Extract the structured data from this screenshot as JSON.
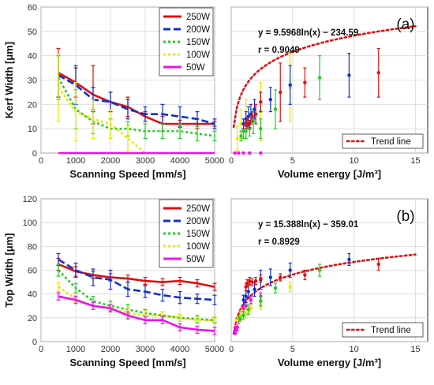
{
  "chart_data": [
    {
      "id": "a_left",
      "type": "line",
      "panel_label": "",
      "xlabel": "Scanning Speed [mm/s]",
      "ylabel": "Kerf Width [μm]",
      "xlim": [
        0,
        5000
      ],
      "ylim": [
        0,
        60
      ],
      "xticks": [
        0,
        1000,
        2000,
        3000,
        4000,
        5000
      ],
      "yticks": [
        0,
        10,
        20,
        30,
        40,
        50,
        60
      ],
      "grid": true,
      "legend_placement": "top-right",
      "series": [
        {
          "name": "250W",
          "color": "#e01010",
          "dash": "solid",
          "x": [
            500,
            1000,
            1500,
            2000,
            2500,
            3000,
            3500,
            4000,
            4500,
            5000
          ],
          "y": [
            33,
            29,
            24,
            21,
            19,
            15,
            12,
            12,
            12,
            12
          ],
          "err": [
            10,
            6,
            12,
            4,
            4,
            2,
            3,
            1.5,
            2,
            1
          ]
        },
        {
          "name": "200W",
          "color": "#1030cc",
          "dash": "dashed",
          "x": [
            500,
            1000,
            1500,
            2000,
            2500,
            3000,
            3500,
            4000,
            4500,
            5000
          ],
          "y": [
            32,
            28,
            22,
            21,
            18,
            16,
            16,
            15,
            14,
            12
          ],
          "err": [
            9,
            8,
            5,
            4,
            4,
            3,
            4,
            4,
            3,
            2
          ]
        },
        {
          "name": "150W",
          "color": "#22cc22",
          "dash": "dotted",
          "x": [
            500,
            1000,
            1500,
            2000,
            2500,
            3000,
            3500,
            4000,
            4500,
            5000
          ],
          "y": [
            31,
            18,
            13,
            10,
            10,
            9,
            9,
            9,
            8,
            7
          ],
          "err": [
            9,
            8,
            5,
            4,
            3,
            3,
            3,
            3,
            3,
            2
          ]
        },
        {
          "name": "100W",
          "color": "#e8e800",
          "dash": "dotted",
          "x": [
            500,
            1000,
            1500,
            2000,
            2500,
            3000
          ],
          "y": [
            27,
            17,
            14,
            12,
            6,
            0
          ],
          "err": [
            14,
            12,
            8,
            6,
            5,
            0
          ]
        },
        {
          "name": "50W",
          "color": "#ee10ee",
          "dash": "solid",
          "x": [
            500,
            1000,
            1500,
            2000,
            2500,
            3000,
            3500,
            4000,
            4500,
            5000
          ],
          "y": [
            0,
            0,
            0,
            0,
            0,
            0,
            0,
            0,
            0,
            0
          ],
          "err": [
            0,
            0,
            0,
            0,
            0,
            0,
            0,
            0,
            0,
            0
          ]
        }
      ]
    },
    {
      "id": "a_right",
      "type": "scatter",
      "panel_label": "(a)",
      "xlabel": "Volume energy [J/m³]",
      "ylabel": "",
      "xlim": [
        0,
        16
      ],
      "ylim": [
        0,
        60
      ],
      "xticks": [
        0,
        5,
        10,
        15
      ],
      "yticks": [
        0,
        10,
        20,
        30,
        40,
        50,
        60
      ],
      "grid": true,
      "annotation": [
        "y = 9.5968ln(x) − 234.59",
        "r = 0.9049"
      ],
      "legend": [
        "Trend line"
      ],
      "legend_placement": "bottom-right",
      "trend": {
        "a": 9.5968,
        "b": 26.16,
        "x_start": 0.2,
        "x_end": 15
      },
      "points": [
        {
          "x": 0.3,
          "y": 0,
          "err": 0,
          "color": "#ee10ee"
        },
        {
          "x": 0.6,
          "y": 0,
          "err": 0,
          "color": "#ee10ee"
        },
        {
          "x": 1.0,
          "y": 0,
          "err": 0,
          "color": "#ee10ee"
        },
        {
          "x": 1.5,
          "y": 0,
          "err": 0,
          "color": "#ee10ee"
        },
        {
          "x": 2.4,
          "y": 0,
          "err": 0,
          "color": "#ee10ee"
        },
        {
          "x": 0.5,
          "y": 6,
          "err": 5,
          "color": "#e8e800"
        },
        {
          "x": 0.8,
          "y": 12,
          "err": 6,
          "color": "#e8e800"
        },
        {
          "x": 1.2,
          "y": 14,
          "err": 8,
          "color": "#e8e800"
        },
        {
          "x": 2.4,
          "y": 17,
          "err": 12,
          "color": "#e8e800"
        },
        {
          "x": 4.8,
          "y": 27,
          "err": 14,
          "color": "#e8e800"
        },
        {
          "x": 0.8,
          "y": 7,
          "err": 2,
          "color": "#22cc22"
        },
        {
          "x": 1.0,
          "y": 9,
          "err": 3,
          "color": "#22cc22"
        },
        {
          "x": 1.2,
          "y": 9,
          "err": 3,
          "color": "#22cc22"
        },
        {
          "x": 1.5,
          "y": 10,
          "err": 3,
          "color": "#22cc22"
        },
        {
          "x": 1.8,
          "y": 13,
          "err": 5,
          "color": "#22cc22"
        },
        {
          "x": 2.4,
          "y": 10,
          "err": 4,
          "color": "#22cc22"
        },
        {
          "x": 3.6,
          "y": 18,
          "err": 8,
          "color": "#22cc22"
        },
        {
          "x": 7.2,
          "y": 31,
          "err": 9,
          "color": "#22cc22"
        },
        {
          "x": 1.0,
          "y": 12,
          "err": 2,
          "color": "#1030cc"
        },
        {
          "x": 1.2,
          "y": 14,
          "err": 3,
          "color": "#1030cc"
        },
        {
          "x": 1.4,
          "y": 15,
          "err": 4,
          "color": "#1030cc"
        },
        {
          "x": 1.6,
          "y": 16,
          "err": 4,
          "color": "#1030cc"
        },
        {
          "x": 1.9,
          "y": 18,
          "err": 4,
          "color": "#1030cc"
        },
        {
          "x": 2.4,
          "y": 21,
          "err": 4,
          "color": "#1030cc"
        },
        {
          "x": 3.2,
          "y": 22,
          "err": 5,
          "color": "#1030cc"
        },
        {
          "x": 4.8,
          "y": 28,
          "err": 8,
          "color": "#1030cc"
        },
        {
          "x": 9.6,
          "y": 32,
          "err": 9,
          "color": "#1030cc"
        },
        {
          "x": 1.2,
          "y": 12,
          "err": 1,
          "color": "#e01010"
        },
        {
          "x": 1.3,
          "y": 12,
          "err": 2,
          "color": "#e01010"
        },
        {
          "x": 1.5,
          "y": 12,
          "err": 1.5,
          "color": "#e01010"
        },
        {
          "x": 1.7,
          "y": 15,
          "err": 2,
          "color": "#e01010"
        },
        {
          "x": 2.0,
          "y": 16,
          "err": 4,
          "color": "#e01010"
        },
        {
          "x": 2.4,
          "y": 21,
          "err": 4,
          "color": "#e01010"
        },
        {
          "x": 4.0,
          "y": 25,
          "err": 12,
          "color": "#e01010"
        },
        {
          "x": 6.0,
          "y": 29,
          "err": 6,
          "color": "#e01010"
        },
        {
          "x": 12.0,
          "y": 33,
          "err": 10,
          "color": "#e01010"
        }
      ]
    },
    {
      "id": "b_left",
      "type": "line",
      "panel_label": "",
      "xlabel": "Scanning Speed [mm/s]",
      "ylabel": "Top Width [μm]",
      "xlim": [
        0,
        5000
      ],
      "ylim": [
        0,
        120
      ],
      "xticks": [
        0,
        1000,
        2000,
        3000,
        4000,
        5000
      ],
      "yticks": [
        0,
        20,
        40,
        60,
        80,
        100,
        120
      ],
      "grid": true,
      "legend_placement": "top-right",
      "series": [
        {
          "name": "250W",
          "color": "#e01010",
          "dash": "solid",
          "x": [
            500,
            1000,
            1500,
            2000,
            2500,
            3000,
            3500,
            4000,
            4500,
            5000
          ],
          "y": [
            65,
            59,
            56,
            54,
            53,
            51,
            50,
            51,
            49,
            46
          ],
          "err": [
            5,
            4,
            3,
            3,
            3,
            3,
            3,
            3,
            3,
            3
          ]
        },
        {
          "name": "200W",
          "color": "#1030cc",
          "dash": "dashed",
          "x": [
            500,
            1000,
            1500,
            2000,
            2500,
            3000,
            3500,
            4000,
            4500,
            5000
          ],
          "y": [
            69,
            60,
            54,
            52,
            44,
            42,
            39,
            37,
            36,
            35
          ],
          "err": [
            5,
            6,
            7,
            8,
            6,
            5,
            5,
            5,
            4,
            4
          ]
        },
        {
          "name": "150W",
          "color": "#22cc22",
          "dash": "dotted",
          "x": [
            500,
            1000,
            1500,
            2000,
            2500,
            3000,
            3500,
            4000,
            4500,
            5000
          ],
          "y": [
            60,
            45,
            34,
            30,
            27,
            24,
            22,
            20,
            19,
            18
          ],
          "err": [
            5,
            4,
            4,
            4,
            4,
            3,
            3,
            3,
            3,
            2
          ]
        },
        {
          "name": "100W",
          "color": "#e8e800",
          "dash": "dotted",
          "x": [
            500,
            1000,
            1500,
            2000,
            2500,
            3000,
            3500,
            4000,
            4500,
            5000
          ],
          "y": [
            46,
            36,
            30,
            28,
            24,
            22,
            22,
            20,
            18,
            18
          ],
          "err": [
            4,
            3,
            3,
            3,
            4,
            4,
            3,
            3,
            3,
            3
          ]
        },
        {
          "name": "50W",
          "color": "#ee10ee",
          "dash": "solid",
          "x": [
            500,
            1000,
            1500,
            2000,
            2500,
            3000,
            3500,
            4000,
            4500,
            5000
          ],
          "y": [
            38,
            35,
            30,
            28,
            22,
            18,
            18,
            12,
            10,
            9
          ],
          "err": [
            3,
            3,
            3,
            3,
            3,
            3,
            3,
            3,
            3,
            3
          ]
        }
      ]
    },
    {
      "id": "b_right",
      "type": "scatter",
      "panel_label": "(b)",
      "xlabel": "Volume energy [J/m³]",
      "ylabel": "",
      "xlim": [
        0,
        16
      ],
      "ylim": [
        0,
        120
      ],
      "xticks": [
        0,
        5,
        10,
        15
      ],
      "yticks": [
        0,
        20,
        40,
        60,
        80,
        100,
        120
      ],
      "grid": true,
      "annotation": [
        "y = 15.388ln(x) − 359.01",
        "r = 0.8929"
      ],
      "legend": [
        "Trend line"
      ],
      "legend_placement": "bottom-right",
      "trend": {
        "a": 15.388,
        "b": 31.5,
        "x_start": 0.2,
        "x_end": 15
      },
      "points": [
        {
          "x": 0.3,
          "y": 9,
          "err": 3,
          "color": "#ee10ee"
        },
        {
          "x": 0.4,
          "y": 10,
          "err": 3,
          "color": "#ee10ee"
        },
        {
          "x": 0.5,
          "y": 12,
          "err": 3,
          "color": "#ee10ee"
        },
        {
          "x": 0.6,
          "y": 18,
          "err": 3,
          "color": "#ee10ee"
        },
        {
          "x": 0.8,
          "y": 22,
          "err": 3,
          "color": "#ee10ee"
        },
        {
          "x": 1.0,
          "y": 28,
          "err": 3,
          "color": "#ee10ee"
        },
        {
          "x": 1.2,
          "y": 30,
          "err": 3,
          "color": "#ee10ee"
        },
        {
          "x": 1.6,
          "y": 35,
          "err": 3,
          "color": "#ee10ee"
        },
        {
          "x": 2.4,
          "y": 38,
          "err": 3,
          "color": "#ee10ee"
        },
        {
          "x": 0.5,
          "y": 18,
          "err": 3,
          "color": "#e8e800"
        },
        {
          "x": 0.8,
          "y": 22,
          "err": 4,
          "color": "#e8e800"
        },
        {
          "x": 1.2,
          "y": 24,
          "err": 4,
          "color": "#e8e800"
        },
        {
          "x": 1.6,
          "y": 28,
          "err": 3,
          "color": "#e8e800"
        },
        {
          "x": 2.4,
          "y": 30,
          "err": 3,
          "color": "#e8e800"
        },
        {
          "x": 4.8,
          "y": 46,
          "err": 4,
          "color": "#e8e800"
        },
        {
          "x": 0.7,
          "y": 19,
          "err": 2,
          "color": "#22cc22"
        },
        {
          "x": 1.0,
          "y": 22,
          "err": 3,
          "color": "#22cc22"
        },
        {
          "x": 1.4,
          "y": 27,
          "err": 4,
          "color": "#22cc22"
        },
        {
          "x": 2.4,
          "y": 34,
          "err": 4,
          "color": "#22cc22"
        },
        {
          "x": 3.6,
          "y": 45,
          "err": 4,
          "color": "#22cc22"
        },
        {
          "x": 7.2,
          "y": 60,
          "err": 5,
          "color": "#22cc22"
        },
        {
          "x": 1.0,
          "y": 35,
          "err": 4,
          "color": "#1030cc"
        },
        {
          "x": 1.2,
          "y": 38,
          "err": 5,
          "color": "#1030cc"
        },
        {
          "x": 1.4,
          "y": 42,
          "err": 5,
          "color": "#1030cc"
        },
        {
          "x": 1.9,
          "y": 44,
          "err": 6,
          "color": "#1030cc"
        },
        {
          "x": 2.4,
          "y": 52,
          "err": 8,
          "color": "#1030cc"
        },
        {
          "x": 3.2,
          "y": 54,
          "err": 7,
          "color": "#1030cc"
        },
        {
          "x": 4.8,
          "y": 60,
          "err": 6,
          "color": "#1030cc"
        },
        {
          "x": 9.6,
          "y": 69,
          "err": 5,
          "color": "#1030cc"
        },
        {
          "x": 1.2,
          "y": 46,
          "err": 3,
          "color": "#e01010"
        },
        {
          "x": 1.3,
          "y": 49,
          "err": 3,
          "color": "#e01010"
        },
        {
          "x": 1.5,
          "y": 51,
          "err": 3,
          "color": "#e01010"
        },
        {
          "x": 1.7,
          "y": 50,
          "err": 3,
          "color": "#e01010"
        },
        {
          "x": 2.0,
          "y": 51,
          "err": 3,
          "color": "#e01010"
        },
        {
          "x": 2.4,
          "y": 53,
          "err": 3,
          "color": "#e01010"
        },
        {
          "x": 4.0,
          "y": 54,
          "err": 3,
          "color": "#e01010"
        },
        {
          "x": 6.0,
          "y": 56,
          "err": 4,
          "color": "#e01010"
        },
        {
          "x": 12.0,
          "y": 65,
          "err": 5,
          "color": "#e01010"
        }
      ]
    }
  ]
}
